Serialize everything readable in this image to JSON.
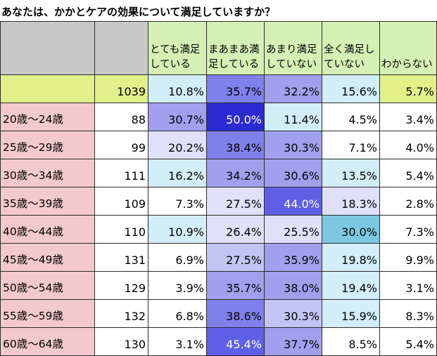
{
  "title": "あなたは、かかとケアの効果について満足していますか？",
  "colors": {
    "header_gray": "#c8c8c8",
    "header_green": "#d4f0b4",
    "total_row": "#e2f08a",
    "age_label": "#f2c9ce",
    "white": "#ffffff",
    "light_blue": "#d2eef8",
    "lavender_light": "#e0e0fa",
    "lavender": "#c4c4f4",
    "purple_mid": "#a0a0ee",
    "purple": "#8080ec",
    "purple_dark": "#5f5fe6",
    "blue_dark": "#2a2ad2",
    "teal": "#7cc8e2"
  },
  "chart_data": {
    "type": "table",
    "title": "あなたは、かかとケアの効果について満足していますか？",
    "columns": [
      "",
      "",
      "とても満足している",
      "まあまあ満足している",
      "あまり満足していない",
      "全く満足していない",
      "わからない"
    ],
    "rows": [
      {
        "label": "",
        "n": "1039",
        "values": [
          "10.8%",
          "35.7%",
          "32.2%",
          "15.6%",
          "5.7%"
        ],
        "fills": [
          "light_blue",
          "purple",
          "purple_mid",
          "light_blue",
          "total_row"
        ],
        "label_fill": "total_row",
        "n_fill": "total_row"
      },
      {
        "label": "20歳～24歳",
        "n": "88",
        "values": [
          "30.7%",
          "50.0%",
          "11.4%",
          "4.5%",
          "3.4%"
        ],
        "fills": [
          "purple_mid",
          "blue_dark",
          "light_blue",
          "white",
          "white"
        ]
      },
      {
        "label": "25歳～29歳",
        "n": "99",
        "values": [
          "20.2%",
          "38.4%",
          "30.3%",
          "7.1%",
          "4.0%"
        ],
        "fills": [
          "lavender_light",
          "purple",
          "purple_mid",
          "white",
          "white"
        ]
      },
      {
        "label": "30歳～34歳",
        "n": "111",
        "values": [
          "16.2%",
          "34.2%",
          "30.6%",
          "13.5%",
          "5.4%"
        ],
        "fills": [
          "light_blue",
          "purple_mid",
          "purple_mid",
          "light_blue",
          "white"
        ]
      },
      {
        "label": "35歳～39歳",
        "n": "109",
        "values": [
          "7.3%",
          "27.5%",
          "44.0%",
          "18.3%",
          "2.8%"
        ],
        "fills": [
          "white",
          "lavender_light",
          "purple_dark",
          "lavender_light",
          "white"
        ]
      },
      {
        "label": "40歳～44歳",
        "n": "110",
        "values": [
          "10.9%",
          "26.4%",
          "25.5%",
          "30.0%",
          "7.3%"
        ],
        "fills": [
          "light_blue",
          "lavender_light",
          "lavender_light",
          "teal",
          "white"
        ]
      },
      {
        "label": "45歳～49歳",
        "n": "131",
        "values": [
          "6.9%",
          "27.5%",
          "35.9%",
          "19.8%",
          "9.9%"
        ],
        "fills": [
          "white",
          "lavender",
          "purple_mid",
          "light_blue",
          "white"
        ]
      },
      {
        "label": "50歳～54歳",
        "n": "129",
        "values": [
          "3.9%",
          "35.7%",
          "38.0%",
          "19.4%",
          "3.1%"
        ],
        "fills": [
          "white",
          "purple_mid",
          "purple_mid",
          "light_blue",
          "white"
        ]
      },
      {
        "label": "55歳～59歳",
        "n": "132",
        "values": [
          "6.8%",
          "38.6%",
          "30.3%",
          "15.9%",
          "8.3%"
        ],
        "fills": [
          "white",
          "purple",
          "lavender",
          "light_blue",
          "white"
        ]
      },
      {
        "label": "60歳～64歳",
        "n": "130",
        "values": [
          "3.1%",
          "45.4%",
          "37.7%",
          "8.5%",
          "5.4%"
        ],
        "fills": [
          "white",
          "purple_dark",
          "purple_mid",
          "white",
          "white"
        ]
      }
    ]
  }
}
